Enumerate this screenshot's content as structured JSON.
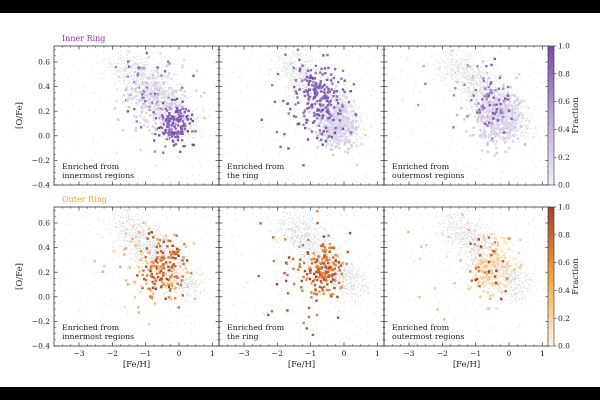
{
  "chart_data": {
    "type": "scatter",
    "xlabel": "[Fe/H]",
    "ylabel": "[O/Fe]",
    "xlim": [
      -3.75,
      1.2
    ],
    "ylim": [
      -0.4,
      0.73
    ],
    "xticks": [
      -3,
      -2,
      -1,
      0,
      1
    ],
    "xtick_labels": [
      "−3",
      "−2",
      "−1",
      "0",
      "1"
    ],
    "yticks": [
      -0.4,
      -0.2,
      0.0,
      0.2,
      0.4,
      0.6
    ],
    "ytick_labels": [
      "−0.4",
      "−0.2",
      "0.0",
      "0.2",
      "0.4",
      "0.6"
    ],
    "background_cloud": {
      "color": "#c4c4c4",
      "track_start": [
        -1.7,
        0.62
      ],
      "track_end": [
        0.35,
        0.05
      ],
      "spread": [
        0.32,
        0.07
      ],
      "halo_fraction": 0.15
    },
    "rows": [
      {
        "title": "Inner Ring",
        "title_color": "#9b2fae",
        "colorbar": {
          "label": "Fraction",
          "ticks": [
            0.0,
            0.2,
            0.4,
            0.6,
            0.8,
            1.0
          ],
          "tick_labels": [
            "0.0",
            "0.2",
            "0.4",
            "0.6",
            "0.8",
            "1.0"
          ],
          "colors": [
            "#f1eef7",
            "#b9a8d8",
            "#7448b2"
          ]
        },
        "panels": [
          {
            "annotation": [
              "Enriched from",
              "innermost regions"
            ],
            "clusters": [
              {
                "center": [
                  -0.1,
                  0.1
                ],
                "spread": [
                  0.25,
                  0.09
                ],
                "n": 160,
                "fraction": [
                  0.8,
                  1.0
                ]
              },
              {
                "center": [
                  -0.8,
                  0.35
                ],
                "spread": [
                  0.5,
                  0.16
                ],
                "n": 60,
                "fraction": [
                  0.6,
                  0.95
                ]
              },
              {
                "center": [
                  -0.7,
                  0.3
                ],
                "spread": [
                  0.5,
                  0.14
                ],
                "n": 220,
                "fraction": [
                  0.1,
                  0.3
                ]
              }
            ]
          },
          {
            "annotation": [
              "Enriched from",
              "the ring"
            ],
            "clusters": [
              {
                "center": [
                  -0.2,
                  0.08
                ],
                "spread": [
                  0.3,
                  0.1
                ],
                "n": 320,
                "fraction": [
                  0.1,
                  0.3
                ]
              },
              {
                "center": [
                  -0.7,
                  0.32
                ],
                "spread": [
                  0.35,
                  0.15
                ],
                "n": 190,
                "fraction": [
                  0.7,
                  1.0
                ]
              },
              {
                "center": [
                  -1.3,
                  0.25
                ],
                "spread": [
                  0.8,
                  0.25
                ],
                "n": 40,
                "fraction": [
                  0.7,
                  1.0
                ]
              }
            ]
          },
          {
            "annotation": [
              "Enriched from",
              "outermost regions"
            ],
            "clusters": [
              {
                "center": [
                  -0.3,
                  0.15
                ],
                "spread": [
                  0.35,
                  0.12
                ],
                "n": 380,
                "fraction": [
                  0.1,
                  0.3
                ]
              },
              {
                "center": [
                  -0.5,
                  0.3
                ],
                "spread": [
                  0.3,
                  0.12
                ],
                "n": 55,
                "fraction": [
                  0.6,
                  0.95
                ]
              },
              {
                "center": [
                  -1.3,
                  0.25
                ],
                "spread": [
                  0.8,
                  0.25
                ],
                "n": 30,
                "fraction": [
                  0.2,
                  0.8
                ]
              }
            ]
          }
        ]
      },
      {
        "title": "Outer Ring",
        "title_color": "#f5a52a",
        "colorbar": {
          "label": "Fraction",
          "ticks": [
            0.0,
            0.2,
            0.4,
            0.6,
            0.8,
            1.0
          ],
          "tick_labels": [
            "0.0",
            "0.2",
            "0.4",
            "0.6",
            "0.8",
            "1.0"
          ],
          "colors": [
            "#fff4e4",
            "#f7a43a",
            "#ad3a2e"
          ]
        },
        "panels": [
          {
            "annotation": [
              "Enriched from",
              "innermost regions"
            ],
            "clusters": [
              {
                "center": [
                  -0.5,
                  0.25
                ],
                "spread": [
                  0.33,
                  0.12
                ],
                "n": 140,
                "fraction": [
                  0.6,
                  1.0
                ]
              },
              {
                "center": [
                  -0.8,
                  0.25
                ],
                "spread": [
                  0.6,
                  0.2
                ],
                "n": 80,
                "fraction": [
                  0.15,
                  0.5
                ]
              }
            ]
          },
          {
            "annotation": [
              "Enriched from",
              "the ring"
            ],
            "clusters": [
              {
                "center": [
                  -0.6,
                  0.22
                ],
                "spread": [
                  0.3,
                  0.12
                ],
                "n": 160,
                "fraction": [
                  0.5,
                  1.0
                ]
              },
              {
                "center": [
                  -1.3,
                  0.2
                ],
                "spread": [
                  0.8,
                  0.25
                ],
                "n": 45,
                "fraction": [
                  0.6,
                  1.0
                ]
              }
            ]
          },
          {
            "annotation": [
              "Enriched from",
              "outermost regions"
            ],
            "clusters": [
              {
                "center": [
                  -0.5,
                  0.25
                ],
                "spread": [
                  0.3,
                  0.13
                ],
                "n": 170,
                "fraction": [
                  0.05,
                  0.3
                ]
              },
              {
                "center": [
                  -0.6,
                  0.28
                ],
                "spread": [
                  0.35,
                  0.13
                ],
                "n": 30,
                "fraction": [
                  0.6,
                  1.0
                ]
              },
              {
                "center": [
                  -1.5,
                  0.3
                ],
                "spread": [
                  0.8,
                  0.25
                ],
                "n": 25,
                "fraction": [
                  0.1,
                  0.4
                ]
              }
            ]
          }
        ]
      }
    ]
  }
}
